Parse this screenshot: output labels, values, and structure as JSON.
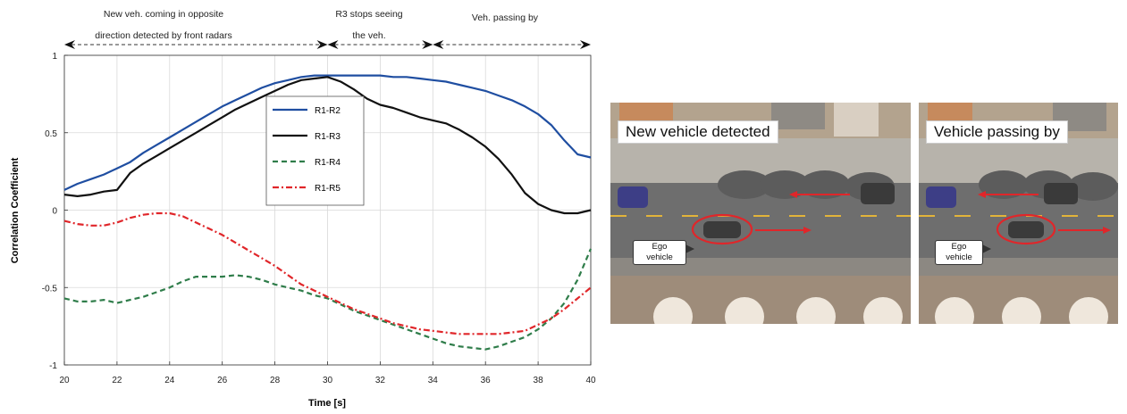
{
  "chart_data": {
    "type": "line",
    "title": "",
    "xlabel": "Time [s]",
    "ylabel": "Correlation Coefficient",
    "xlim": [
      20,
      40
    ],
    "ylim": [
      -1,
      1
    ],
    "xticks": [
      20,
      22,
      24,
      26,
      28,
      30,
      32,
      34,
      36,
      38,
      40
    ],
    "yticks": [
      -1,
      -0.5,
      0,
      0.5,
      1
    ],
    "ytick_labels": [
      "-1",
      "-0.5",
      "0",
      "0.5",
      "1"
    ],
    "grid": true,
    "legend_position": "upper-center",
    "series": [
      {
        "name": "R1-R2",
        "color": "#1f4ea1",
        "dash": "solid",
        "x": [
          20,
          20.5,
          21,
          21.5,
          22,
          22.5,
          23,
          23.5,
          24,
          24.5,
          25,
          25.5,
          26,
          26.5,
          27,
          27.5,
          28,
          28.5,
          29,
          29.5,
          30,
          30.5,
          31,
          31.5,
          32,
          32.5,
          33,
          33.5,
          34,
          34.5,
          35,
          35.5,
          36,
          36.5,
          37,
          37.5,
          38,
          38.5,
          39,
          39.5,
          40
        ],
        "y": [
          0.13,
          0.17,
          0.2,
          0.23,
          0.27,
          0.31,
          0.37,
          0.42,
          0.47,
          0.52,
          0.57,
          0.62,
          0.67,
          0.71,
          0.75,
          0.79,
          0.82,
          0.84,
          0.86,
          0.87,
          0.87,
          0.87,
          0.87,
          0.87,
          0.87,
          0.86,
          0.86,
          0.85,
          0.84,
          0.83,
          0.81,
          0.79,
          0.77,
          0.74,
          0.71,
          0.67,
          0.62,
          0.55,
          0.45,
          0.36,
          0.34
        ]
      },
      {
        "name": "R1-R3",
        "color": "#111111",
        "dash": "solid",
        "x": [
          20,
          20.5,
          21,
          21.5,
          22,
          22.5,
          23,
          23.5,
          24,
          24.5,
          25,
          25.5,
          26,
          26.5,
          27,
          27.5,
          28,
          28.5,
          29,
          29.5,
          30,
          30.5,
          31,
          31.5,
          32,
          32.5,
          33,
          33.5,
          34,
          34.5,
          35,
          35.5,
          36,
          36.5,
          37,
          37.5,
          38,
          38.5,
          39,
          39.5,
          40
        ],
        "y": [
          0.1,
          0.09,
          0.1,
          0.12,
          0.13,
          0.24,
          0.3,
          0.35,
          0.4,
          0.45,
          0.5,
          0.55,
          0.6,
          0.65,
          0.69,
          0.73,
          0.77,
          0.81,
          0.84,
          0.85,
          0.86,
          0.83,
          0.78,
          0.72,
          0.68,
          0.66,
          0.63,
          0.6,
          0.58,
          0.56,
          0.52,
          0.47,
          0.41,
          0.33,
          0.23,
          0.11,
          0.04,
          0.0,
          -0.02,
          -0.02,
          0.0
        ]
      },
      {
        "name": "R1-R4",
        "color": "#2f7d4a",
        "dash": "dashed",
        "x": [
          20,
          20.5,
          21,
          21.5,
          22,
          22.5,
          23,
          23.5,
          24,
          24.5,
          25,
          25.5,
          26,
          26.5,
          27,
          27.5,
          28,
          28.5,
          29,
          29.5,
          30,
          30.5,
          31,
          31.5,
          32,
          32.5,
          33,
          33.5,
          34,
          34.5,
          35,
          35.5,
          36,
          36.5,
          37,
          37.5,
          38,
          38.5,
          39,
          39.5,
          40
        ],
        "y": [
          -0.57,
          -0.59,
          -0.59,
          -0.58,
          -0.6,
          -0.58,
          -0.56,
          -0.53,
          -0.5,
          -0.46,
          -0.43,
          -0.43,
          -0.43,
          -0.42,
          -0.43,
          -0.45,
          -0.48,
          -0.5,
          -0.52,
          -0.55,
          -0.57,
          -0.61,
          -0.65,
          -0.68,
          -0.71,
          -0.74,
          -0.77,
          -0.8,
          -0.83,
          -0.86,
          -0.88,
          -0.89,
          -0.9,
          -0.88,
          -0.85,
          -0.82,
          -0.77,
          -0.7,
          -0.6,
          -0.45,
          -0.25
        ]
      },
      {
        "name": "R1-R5",
        "color": "#e0262a",
        "dash": "dashdot",
        "x": [
          20,
          20.5,
          21,
          21.5,
          22,
          22.5,
          23,
          23.5,
          24,
          24.5,
          25,
          25.5,
          26,
          26.5,
          27,
          27.5,
          28,
          28.5,
          29,
          29.5,
          30,
          30.5,
          31,
          31.5,
          32,
          32.5,
          33,
          33.5,
          34,
          34.5,
          35,
          35.5,
          36,
          36.5,
          37,
          37.5,
          38,
          38.5,
          39,
          39.5,
          40
        ],
        "y": [
          -0.07,
          -0.09,
          -0.1,
          -0.1,
          -0.08,
          -0.05,
          -0.03,
          -0.02,
          -0.02,
          -0.04,
          -0.08,
          -0.12,
          -0.16,
          -0.21,
          -0.26,
          -0.31,
          -0.36,
          -0.42,
          -0.48,
          -0.52,
          -0.56,
          -0.6,
          -0.64,
          -0.67,
          -0.7,
          -0.73,
          -0.75,
          -0.77,
          -0.78,
          -0.79,
          -0.8,
          -0.8,
          -0.8,
          -0.8,
          -0.79,
          -0.78,
          -0.74,
          -0.7,
          -0.64,
          -0.57,
          -0.5
        ]
      }
    ],
    "annotations": [
      {
        "text_lines": [
          "New veh. coming in opposite",
          "direction detected by front radars"
        ],
        "x_start": 20,
        "x_end": 30
      },
      {
        "text_lines": [
          "R3 stops seeing",
          "the veh."
        ],
        "x_start": 30,
        "x_end": 34
      },
      {
        "text_lines": [
          "Veh. passing by"
        ],
        "x_start": 34,
        "x_end": 40
      }
    ]
  },
  "scenes": [
    {
      "caption": "New vehicle detected",
      "ego_label_line1": "Ego",
      "ego_label_line2": "vehicle"
    },
    {
      "caption": "Vehicle passing by",
      "ego_label_line1": "Ego",
      "ego_label_line2": "vehicle"
    }
  ],
  "colors": {
    "arrow": "#e0262a",
    "ellipse": "#e0262a",
    "road": "#6e6e6e"
  }
}
